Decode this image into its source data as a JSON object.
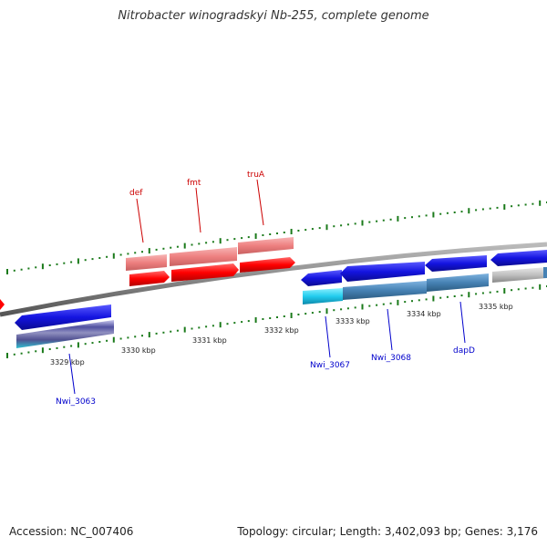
{
  "title": "Nitrobacter winogradskyi Nb-255, complete genome",
  "footer": {
    "accession": "Accession: NC_007406",
    "topology": "Topology: circular; Length: 3,402,093 bp; Genes: 3,176"
  },
  "scale_labels": [
    "3329 kbp",
    "3330 kbp",
    "3331 kbp",
    "3332 kbp",
    "3333 kbp",
    "3334 kbp",
    "3335 kbp"
  ],
  "top_genes": [
    "def",
    "fmt",
    "truA"
  ],
  "bottom_genes": [
    "Nwi_3063",
    "Nwi_3067",
    "Nwi_3068",
    "dapD"
  ],
  "colors": {
    "forward_strand": "#ff0000",
    "forward_light": "#f08080",
    "reverse_strand": "#1010dd",
    "backbone": "#888888",
    "tick": "#1a7a1a",
    "label_forward": "#cc0000",
    "label_reverse": "#0000cc"
  }
}
